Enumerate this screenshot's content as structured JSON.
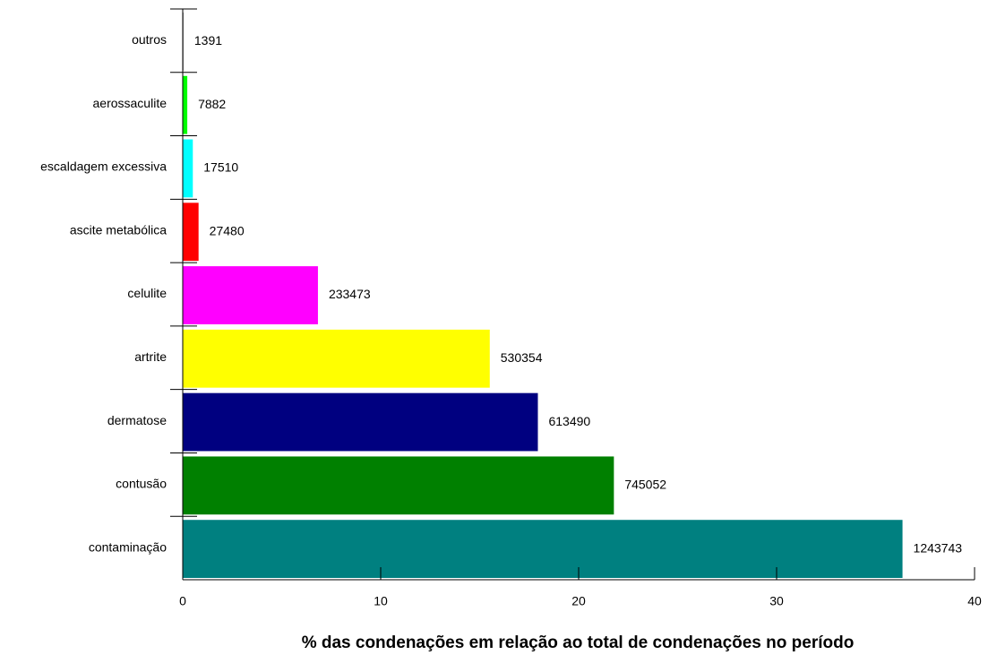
{
  "chart_data": {
    "type": "barh",
    "xlabel": "% das condenações em relação ao total de condenações no período",
    "categories": [
      "outros",
      "aerossaculite",
      "escaldagem excessiva",
      "ascite metabólica",
      "celulite",
      "artrite",
      "dermatose",
      "contusão",
      "contaminação"
    ],
    "values": [
      0.04,
      0.23,
      0.51,
      0.8,
      6.83,
      15.51,
      17.94,
      21.78,
      36.36
    ],
    "counts": [
      1391,
      7882,
      17510,
      27480,
      233473,
      530354,
      613490,
      745052,
      1243743
    ],
    "colors": [
      "#808080",
      "#00ff00",
      "#00ffff",
      "#ff0000",
      "#ff00ff",
      "#ffff00",
      "#000080",
      "#008000",
      "#008080"
    ],
    "xlim": [
      0,
      40
    ],
    "xticks": [
      0,
      10,
      20,
      30,
      40
    ]
  }
}
